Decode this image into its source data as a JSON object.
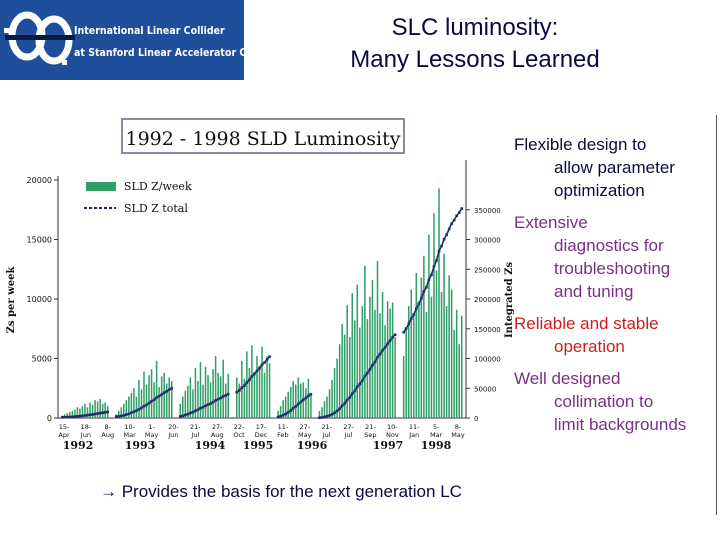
{
  "logo": {
    "line1": "International Linear Collider",
    "line2": "at Stanford Linear Accelerator Center"
  },
  "title": {
    "line1": "SLC luminosity:",
    "line2": "Many Lessons Learned"
  },
  "chart_data": {
    "type": "bar",
    "title": "1992 - 1998 SLD Luminosity",
    "ylabel": "Zs per week",
    "y2label": "Integrated Zs",
    "ylim": [
      0,
      20000
    ],
    "y2lim": [
      0,
      400000
    ],
    "yticks": [
      "0",
      "5000",
      "10000",
      "15000",
      "20000"
    ],
    "y2ticks": [
      "0",
      "50000",
      "100000",
      "150000",
      "200000",
      "250000",
      "300000",
      "350000"
    ],
    "legend": [
      "SLD Z/week",
      "SLD Z total"
    ],
    "legend_position": "top-left",
    "colors": {
      "bars": "#2f9e67",
      "line": "#1f2d6b"
    },
    "xticks": [
      {
        "day": "15-",
        "mon": "Apr"
      },
      {
        "day": "18-",
        "mon": "Jun"
      },
      {
        "day": "8-",
        "mon": "Aug"
      },
      {
        "day": "10-",
        "mon": "Mar"
      },
      {
        "day": "1-",
        "mon": "May"
      },
      {
        "day": "20-",
        "mon": "Jun"
      },
      {
        "day": "21-",
        "mon": "Jul"
      },
      {
        "day": "27-",
        "mon": "Aug"
      },
      {
        "day": "22-",
        "mon": "Oct"
      },
      {
        "day": "17-",
        "mon": "Dec"
      },
      {
        "day": "11-",
        "mon": "Feb"
      },
      {
        "day": "27-",
        "mon": "May"
      },
      {
        "day": "21-",
        "mon": "Jul"
      },
      {
        "day": "27-",
        "mon": "Jul"
      },
      {
        "day": "21-",
        "mon": "Sep"
      },
      {
        "day": "10-",
        "mon": "Nov"
      },
      {
        "day": "11-",
        "mon": "Jan"
      },
      {
        "day": "5-",
        "mon": "Mar"
      },
      {
        "day": "8-",
        "mon": "May"
      }
    ],
    "years": [
      "1992",
      "1993",
      "1994",
      "1995",
      "1996",
      "1997",
      "1998"
    ],
    "segments": [
      {
        "weekly": [
          200,
          300,
          400,
          500,
          600,
          700,
          900,
          800,
          1000,
          1200,
          900,
          1300,
          1100,
          1500,
          1400,
          1600,
          1200,
          1300,
          1000
        ],
        "total_start": 1000,
        "total_end": 10000
      },
      {
        "weekly": [
          300,
          600,
          900,
          1200,
          1500,
          1800,
          2100,
          2500,
          1800,
          3200,
          2400,
          3900,
          2800,
          3600,
          4100,
          3000,
          4800,
          2600,
          3500,
          3800,
          2900,
          3400,
          3100
        ],
        "total_start": 2000,
        "total_end": 50000
      },
      {
        "weekly": [
          1200,
          1800,
          2300,
          2700,
          3400,
          2400,
          4200,
          3100,
          4700,
          2800,
          4300,
          3600,
          3000,
          4100,
          5200,
          3800,
          3500,
          4900,
          2900,
          3700
        ],
        "total_start": 2000,
        "total_end": 40000
      },
      {
        "weekly": [
          3400,
          2900,
          4800,
          3300,
          5600,
          4200,
          6100,
          3900,
          5200,
          4400,
          6000,
          3800,
          5200,
          4600
        ],
        "total_start": 40000,
        "total_end": 103000
      },
      {
        "weekly": [
          600,
          1000,
          1500,
          1800,
          2200,
          2600,
          3100,
          2800,
          3400,
          2900,
          3000,
          2500,
          3300,
          2100
        ],
        "total_start": 1000,
        "total_end": 40000
      },
      {
        "weekly": [
          600,
          900,
          1400,
          1800,
          2400,
          3200,
          4200,
          5000,
          6200,
          7900,
          7000,
          9500,
          6800,
          10500,
          8200,
          11200,
          7600,
          9400,
          12800,
          8300,
          10200,
          11600,
          9100,
          13200,
          8800,
          10600,
          7800,
          9800,
          9200,
          9700,
          6800
        ],
        "total_start": 0,
        "total_end": 140000
      },
      {
        "weekly": [
          5200,
          7600,
          9400,
          10800,
          8600,
          12200,
          9800,
          11800,
          13600,
          8900,
          15400,
          10200,
          17200,
          12400,
          19300,
          10600,
          13800,
          9400,
          12000,
          10800,
          7400,
          9100,
          6200,
          8600
        ],
        "total_start": 140000,
        "total_end": 352000
      }
    ]
  },
  "bullets": [
    {
      "lines": [
        "Flexible design to",
        "allow parameter",
        "optimization"
      ],
      "color": "#0a0a40"
    },
    {
      "lines": [
        "Extensive",
        "diagnostics for",
        "troubleshooting",
        "and tuning"
      ],
      "color": "#7a2f86"
    },
    {
      "lines": [
        "Reliable and stable",
        "operation"
      ],
      "color": "#cc1f1f"
    },
    {
      "lines": [
        "Well designed",
        "collimation to",
        "limit backgrounds"
      ],
      "color": "#7a2f86"
    }
  ],
  "footer": "→ Provides the basis for the next generation LC"
}
